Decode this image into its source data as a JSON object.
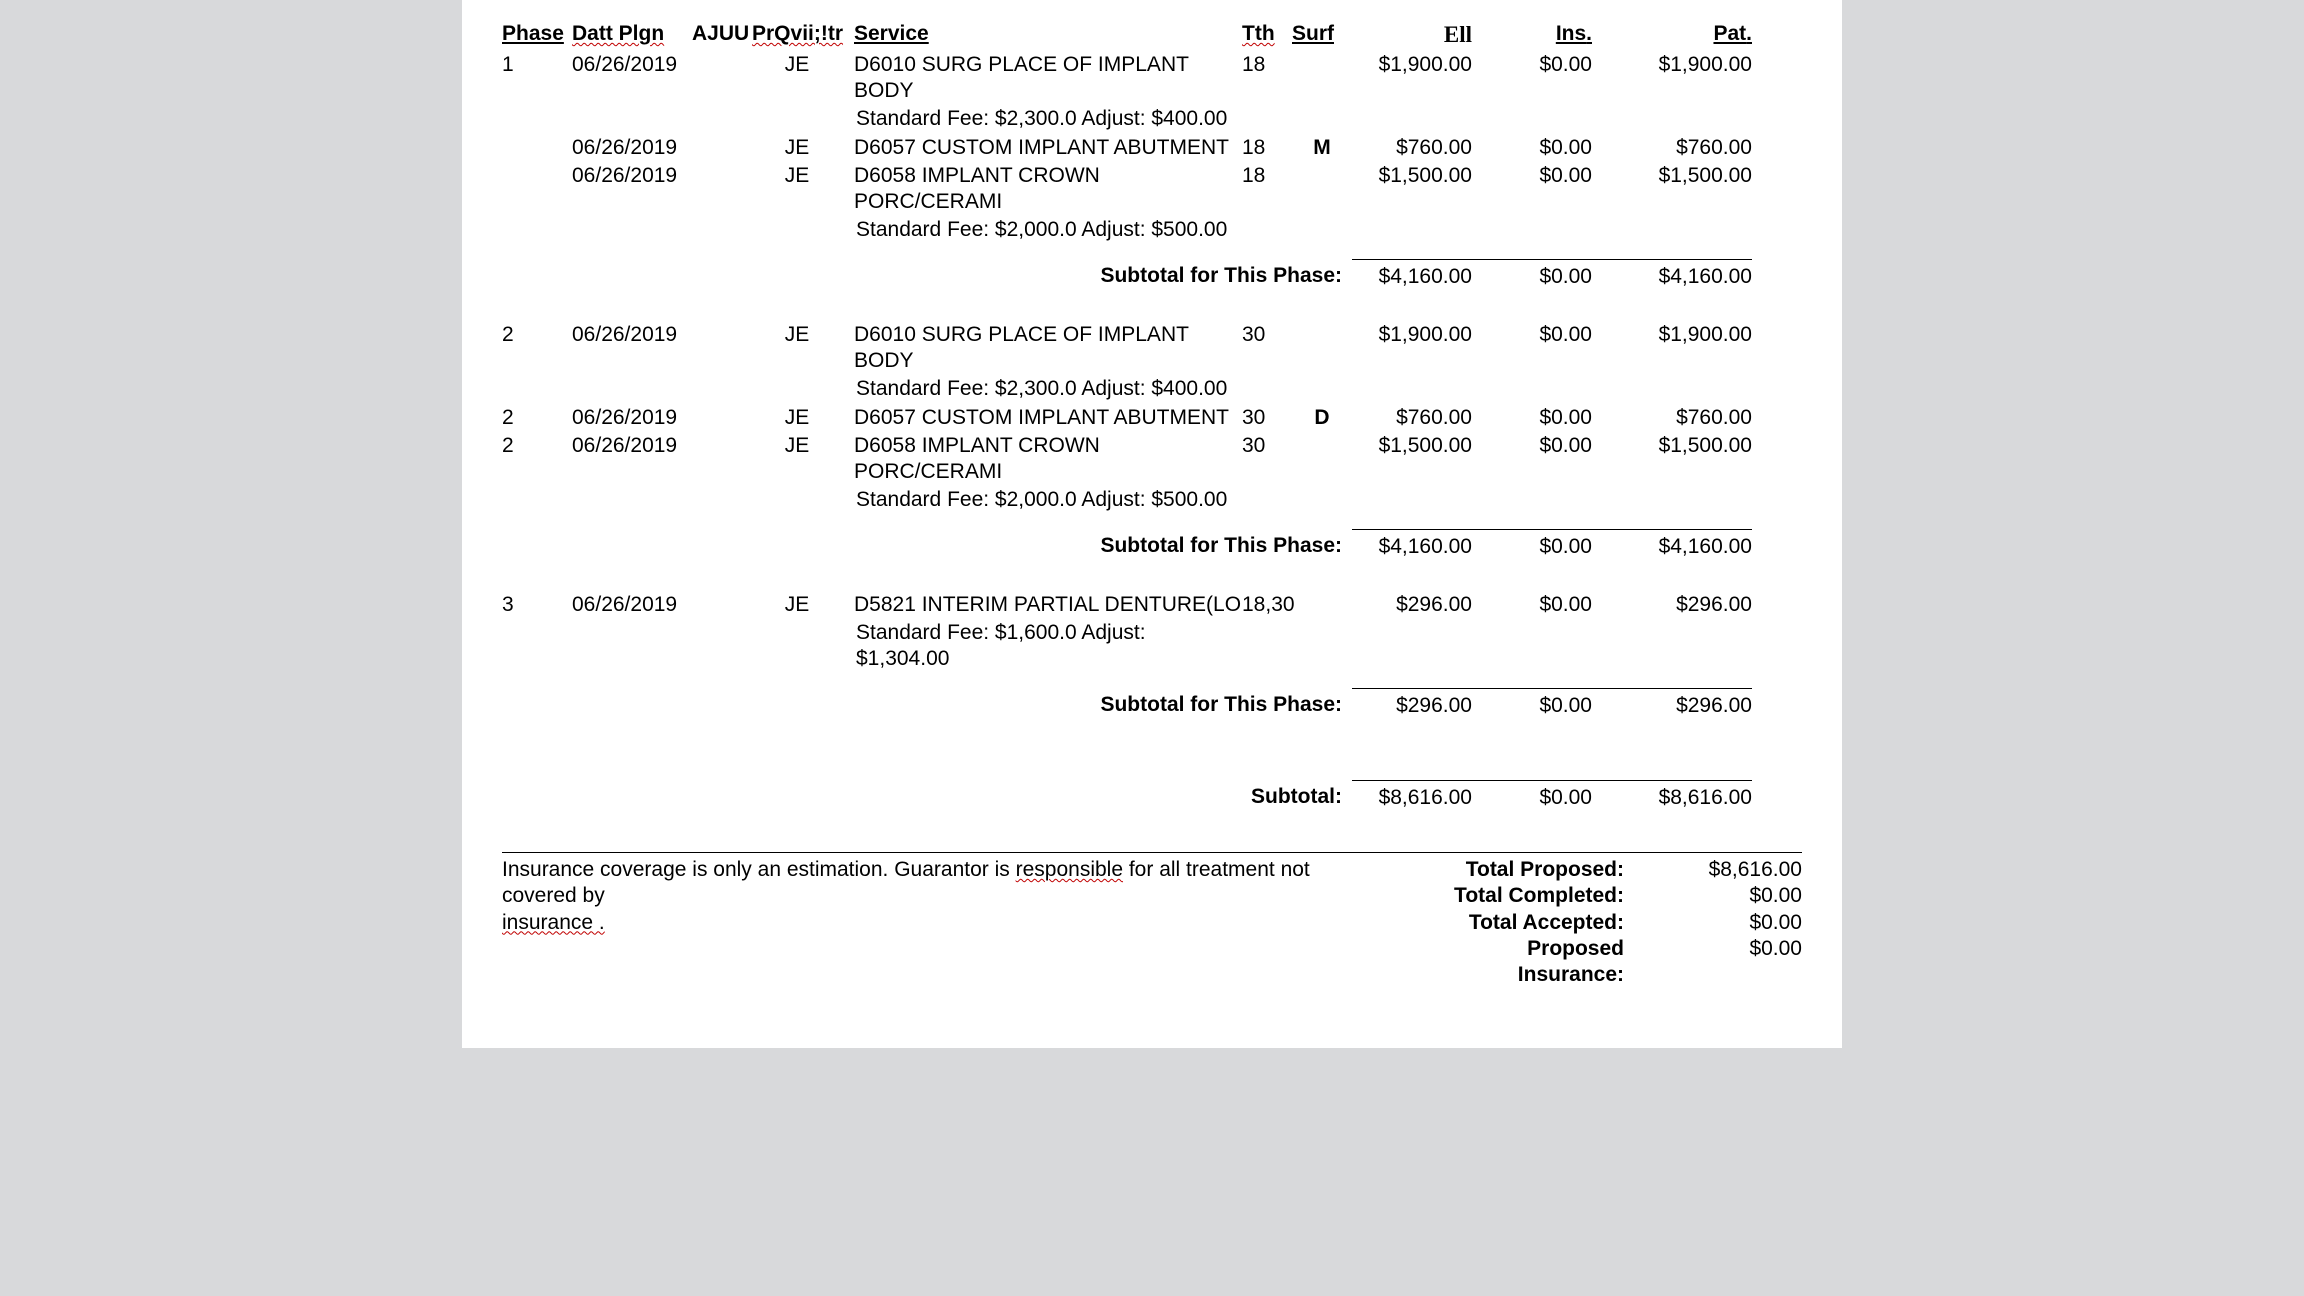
{
  "headers": {
    "phase": "Phase",
    "date": "Datt Plgn",
    "ajuu": "AJUU",
    "prov": "PrQvii;!tr",
    "service": "Service",
    "tth": "Tth",
    "surf": "Surf",
    "ell": "Ell",
    "ins": "Ins",
    "pat": "Pat"
  },
  "phases": [
    {
      "rows": [
        {
          "phase": "1",
          "date": "06/26/2019",
          "ajuu": "",
          "prov": "JE",
          "service": "D6010 SURG PLACE OF IMPLANT BODY",
          "std": "Standard Fee: $2,300.0 Adjust: $400.00",
          "tth": "18",
          "surf": "",
          "ell": "$1,900.00",
          "ins": "$0.00",
          "pat": "$1,900.00"
        },
        {
          "phase": "",
          "date": "06/26/2019",
          "ajuu": "",
          "prov": "JE",
          "service": "D6057 CUSTOM IMPLANT ABUTMENT",
          "std": "",
          "tth": "18",
          "surf": "M",
          "ell": "$760.00",
          "ins": "$0.00",
          "pat": "$760.00"
        },
        {
          "phase": "",
          "date": "06/26/2019",
          "ajuu": "",
          "prov": "JE",
          "service": "D6058 IMPLANT CROWN PORC/CERAMI",
          "std": "Standard Fee: $2,000.0 Adjust: $500.00",
          "tth": "18",
          "surf": "",
          "ell": "$1,500.00",
          "ins": "$0.00",
          "pat": "$1,500.00"
        }
      ],
      "subtotal": {
        "label": "Subtotal for This Phase:",
        "ell": "$4,160.00",
        "ins": "$0.00",
        "pat": "$4,160.00"
      }
    },
    {
      "rows": [
        {
          "phase": "2",
          "date": "06/26/2019",
          "ajuu": "",
          "prov": "JE",
          "service": "D6010 SURG PLACE OF IMPLANT BODY",
          "std": "Standard Fee: $2,300.0 Adjust: $400.00",
          "tth": "30",
          "surf": "",
          "ell": "$1,900.00",
          "ins": "$0.00",
          "pat": "$1,900.00"
        },
        {
          "phase": "2",
          "date": "06/26/2019",
          "ajuu": "",
          "prov": "JE",
          "service": "D6057 CUSTOM IMPLANT ABUTMENT",
          "std": "",
          "tth": "30",
          "surf": "D",
          "ell": "$760.00",
          "ins": "$0.00",
          "pat": "$760.00"
        },
        {
          "phase": "2",
          "date": "06/26/2019",
          "ajuu": "",
          "prov": "JE",
          "service": "D6058 IMPLANT CROWN PORC/CERAMI",
          "std": "Standard Fee: $2,000.0 Adjust: $500.00",
          "tth": "30",
          "surf": "",
          "ell": "$1,500.00",
          "ins": "$0.00",
          "pat": "$1,500.00"
        }
      ],
      "subtotal": {
        "label": "Subtotal for This Phase:",
        "ell": "$4,160.00",
        "ins": "$0.00",
        "pat": "$4,160.00"
      }
    },
    {
      "rows": [
        {
          "phase": "3",
          "date": "06/26/2019",
          "ajuu": "",
          "prov": "JE",
          "service": "D5821  INTERIM PARTIAL DENTURE(LO",
          "std": "Standard Fee: $1,600.0 Adjust: $1,304.00",
          "tth": "18,30",
          "surf": "",
          "ell": "$296.00",
          "ins": "$0.00",
          "pat": "$296.00"
        }
      ],
      "subtotal": {
        "label": "Subtotal for This Phase:",
        "ell": "$296.00",
        "ins": "$0.00",
        "pat": "$296.00"
      }
    }
  ],
  "grand": {
    "label": "Subtotal:",
    "ell": "$8,616.00",
    "ins": "$0.00",
    "pat": "$8,616.00"
  },
  "note": {
    "line1a": "Insurance coverage is only an estimation. Guarantor is ",
    "line1b": "responsible",
    "line1c": " for all treatment not covered by",
    "line2": "insurance ."
  },
  "totals": [
    {
      "label": "Total Proposed:",
      "value": "$8,616.00"
    },
    {
      "label": "Total Completed:",
      "value": "$0.00"
    },
    {
      "label": "Total Accepted:",
      "value": "$0.00"
    },
    {
      "label": "Proposed Insurance:",
      "value": "$0.00"
    }
  ]
}
